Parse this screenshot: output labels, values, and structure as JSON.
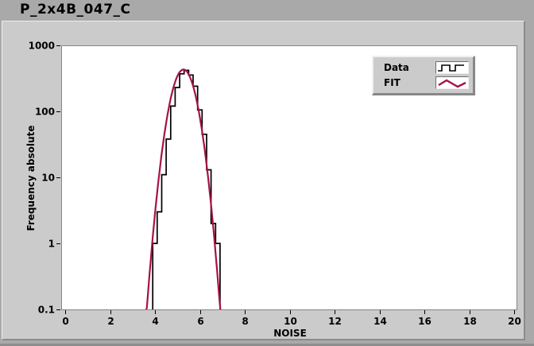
{
  "window": {
    "title": "P_2x4B_047_C"
  },
  "axes": {
    "x": {
      "label": "NOISE",
      "min": 0,
      "max": 20,
      "ticks": [
        "0",
        "2",
        "4",
        "6",
        "8",
        "10",
        "12",
        "14",
        "16",
        "18",
        "20"
      ],
      "tick_values": [
        0,
        2,
        4,
        6,
        8,
        10,
        12,
        14,
        16,
        18,
        20
      ]
    },
    "y": {
      "label": "Frequency absolute",
      "scale": "log",
      "min": 0.1,
      "max": 1000,
      "ticks": [
        "1000",
        "100",
        "10",
        "1",
        "0.1"
      ],
      "tick_values": [
        1000,
        100,
        10,
        1,
        0.1
      ]
    }
  },
  "legend": {
    "items": [
      {
        "label": "Data",
        "glyph": "step-line-icon",
        "color": "#000000"
      },
      {
        "label": "FIT",
        "glyph": "zigzag-line-icon",
        "color": "#a8104a"
      }
    ]
  },
  "chart_data": {
    "type": "bar",
    "subtype": "log-histogram-with-fit",
    "title": "P_2x4B_047_C",
    "xlabel": "NOISE",
    "ylabel": "Frequency absolute",
    "xlim": [
      0,
      20
    ],
    "ylim": [
      0.1,
      1000
    ],
    "y_scale": "log",
    "grid": false,
    "legend_position": "top-right-inside",
    "series": [
      {
        "name": "Data",
        "type": "step-histogram",
        "color": "#000000",
        "bin_start": 3.9,
        "bin_width": 0.2,
        "bin_centers": [
          4.0,
          4.2,
          4.4,
          4.6,
          4.8,
          5.0,
          5.2,
          5.4,
          5.6,
          5.8,
          6.0,
          6.2,
          6.4,
          6.6,
          6.8
        ],
        "counts": [
          1,
          3,
          11,
          38,
          120,
          230,
          370,
          420,
          355,
          240,
          105,
          45,
          13,
          2,
          1
        ]
      },
      {
        "name": "FIT",
        "type": "gaussian-curve",
        "color": "#a8104a",
        "amplitude": 430,
        "mean": 5.27,
        "sigma": 0.4,
        "x_range": [
          3.6,
          6.95
        ]
      }
    ]
  },
  "colors": {
    "window_bg": "#a9a9a9",
    "panel_bg": "#cbcbcb",
    "plot_bg": "#ffffff",
    "plot_border": "#858585",
    "bevel_light": "#f0f0f0",
    "bevel_dark": "#878787",
    "text": "#000000"
  }
}
